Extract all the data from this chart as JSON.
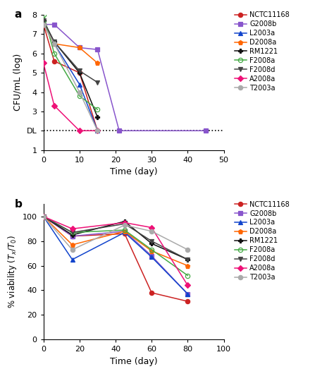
{
  "strains": [
    "NCTC11168",
    "G2008b",
    "L2003a",
    "D2008a",
    "RM1221",
    "F2008a",
    "F2008d",
    "A2008a",
    "T2003a"
  ],
  "colors": [
    "#cc2222",
    "#8855cc",
    "#1144cc",
    "#ff6600",
    "#111111",
    "#44aa44",
    "#444444",
    "#ee1177",
    "#aaaaaa"
  ],
  "panel_a": {
    "title": "a",
    "xlabel": "Time (day)",
    "ylabel": "CFU/mL (log)",
    "xlim": [
      0,
      50
    ],
    "ylim": [
      1,
      8
    ],
    "yticks": [
      1,
      2,
      3,
      4,
      5,
      6,
      7,
      8
    ],
    "xticks": [
      0,
      10,
      20,
      30,
      40,
      50
    ],
    "DL_y": 2.0,
    "data": {
      "NCTC11168": {
        "x": [
          0,
          3,
          10,
          15
        ],
        "y": [
          7.5,
          5.6,
          5.0,
          2.0
        ]
      },
      "G2008b": {
        "x": [
          0,
          3,
          10,
          15,
          21,
          45
        ],
        "y": [
          7.5,
          7.5,
          6.3,
          6.2,
          2.0,
          2.0
        ]
      },
      "L2003a": {
        "x": [
          0,
          3,
          10,
          15
        ],
        "y": [
          7.5,
          6.5,
          4.4,
          2.0
        ]
      },
      "D2008a": {
        "x": [
          0,
          3,
          10,
          15
        ],
        "y": [
          7.5,
          6.5,
          6.3,
          5.5
        ]
      },
      "RM1221": {
        "x": [
          0,
          3,
          10,
          15
        ],
        "y": [
          7.7,
          6.6,
          5.0,
          2.7
        ]
      },
      "F2008a": {
        "x": [
          0,
          3,
          10,
          15
        ],
        "y": [
          8.0,
          6.0,
          3.8,
          3.1
        ]
      },
      "F2008d": {
        "x": [
          0,
          3,
          10,
          15
        ],
        "y": [
          7.7,
          6.6,
          5.1,
          4.5
        ]
      },
      "A2008a": {
        "x": [
          0,
          3,
          10,
          15
        ],
        "y": [
          5.5,
          3.3,
          2.0,
          2.0
        ]
      },
      "T2003a": {
        "x": [
          0,
          3,
          10,
          15
        ],
        "y": [
          7.5,
          6.5,
          4.0,
          2.0
        ]
      }
    }
  },
  "panel_b": {
    "title": "b",
    "xlabel": "Time (day)",
    "ylabel": "% viability (T_x/T_0)",
    "xlim": [
      0,
      100
    ],
    "ylim": [
      0,
      110
    ],
    "yticks": [
      0,
      20,
      40,
      60,
      80,
      100
    ],
    "xticks": [
      0,
      20,
      40,
      60,
      80,
      100
    ],
    "data": {
      "NCTC11168": {
        "x": [
          0,
          16,
          45,
          60,
          80
        ],
        "y": [
          100,
          84,
          86,
          38,
          31
        ]
      },
      "G2008b": {
        "x": [
          0,
          16,
          45,
          60,
          80
        ],
        "y": [
          100,
          84,
          88,
          68,
          37
        ]
      },
      "L2003a": {
        "x": [
          0,
          16,
          45,
          60,
          80
        ],
        "y": [
          100,
          65,
          87,
          67,
          37
        ]
      },
      "D2008a": {
        "x": [
          0,
          16,
          45,
          60,
          80
        ],
        "y": [
          100,
          77,
          88,
          72,
          60
        ]
      },
      "RM1221": {
        "x": [
          0,
          16,
          45,
          60,
          80
        ],
        "y": [
          100,
          85,
          96,
          78,
          65
        ]
      },
      "F2008a": {
        "x": [
          0,
          16,
          45,
          60,
          80
        ],
        "y": [
          100,
          87,
          89,
          73,
          52
        ]
      },
      "F2008d": {
        "x": [
          0,
          16,
          45,
          60,
          80
        ],
        "y": [
          100,
          87,
          94,
          80,
          65
        ]
      },
      "A2008a": {
        "x": [
          0,
          16,
          45,
          60,
          80
        ],
        "y": [
          100,
          90,
          95,
          91,
          44
        ]
      },
      "T2003a": {
        "x": [
          0,
          16,
          45,
          60,
          80
        ],
        "y": [
          100,
          73,
          93,
          88,
          73
        ]
      }
    }
  }
}
